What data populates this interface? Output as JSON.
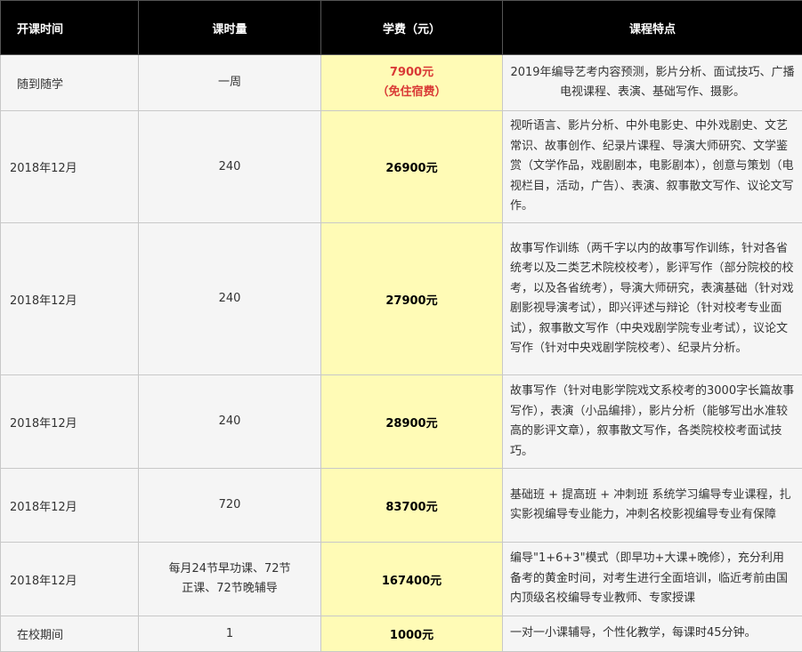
{
  "header": {
    "start_time": "开课时间",
    "hours": "课时量",
    "fee": "学费（元）",
    "features": "课程特点"
  },
  "colors": {
    "header_bg": "#000000",
    "fee_bg": "#fffbb6",
    "highlight_red": "#d93a36"
  },
  "rows": [
    {
      "start": "随到随学",
      "hours": "一周",
      "fee": "7900元",
      "fee_note": "（免住宿费）",
      "features": "2019年编导艺考内容预测，影片分析、面试技巧、广播电视课程、表演、基础写作、摄影。"
    },
    {
      "start": "2018年12月",
      "hours": "240",
      "fee": "26900元",
      "features": "视听语言、影片分析、中外电影史、中外戏剧史、文艺常识、故事创作、纪录片课程、导演大师研究、文学鉴赏（文学作品，戏剧剧本，电影剧本），创意与策划（电视栏目，活动，广告）、表演、叙事散文写作、议论文写作。"
    },
    {
      "start": "2018年12月",
      "hours": "240",
      "fee": "27900元",
      "features": "故事写作训练（两千字以内的故事写作训练，针对各省统考以及二类艺术院校校考），影评写作（部分院校的校考，以及各省统考），导演大师研究，表演基础（针对戏剧影视导演考试），即兴评述与辩论（针对校考专业面试），叙事散文写作（中央戏剧学院专业考试），议论文写作（针对中央戏剧学院校考）、纪录片分析。"
    },
    {
      "start": "2018年12月",
      "hours": "240",
      "fee": "28900元",
      "features": "故事写作（针对电影学院戏文系校考的3000字长篇故事写作），表演（小品编排），影片分析（能够写出水准较高的影评文章），叙事散文写作，各类院校校考面试技巧。"
    },
    {
      "start": "2018年12月",
      "hours": "720",
      "fee": "83700元",
      "features": "基础班 + 提高班 + 冲刺班 系统学习编导专业课程，扎实影视编导专业能力，冲刺名校影视编导专业有保障"
    },
    {
      "start": "2018年12月",
      "hours": "每月24节早功课、72节正课、72节晚辅导",
      "fee": "167400元",
      "features": "编导\"1+6+3\"模式（即早功+大课+晚修），充分利用备考的黄金时间，对考生进行全面培训，临近考前由国内顶级名校编导专业教师、专家授课"
    },
    {
      "start": "在校期间",
      "hours": "1",
      "fee": "1000元",
      "features": "一对一小课辅导，个性化教学，每课时45分钟。"
    }
  ]
}
